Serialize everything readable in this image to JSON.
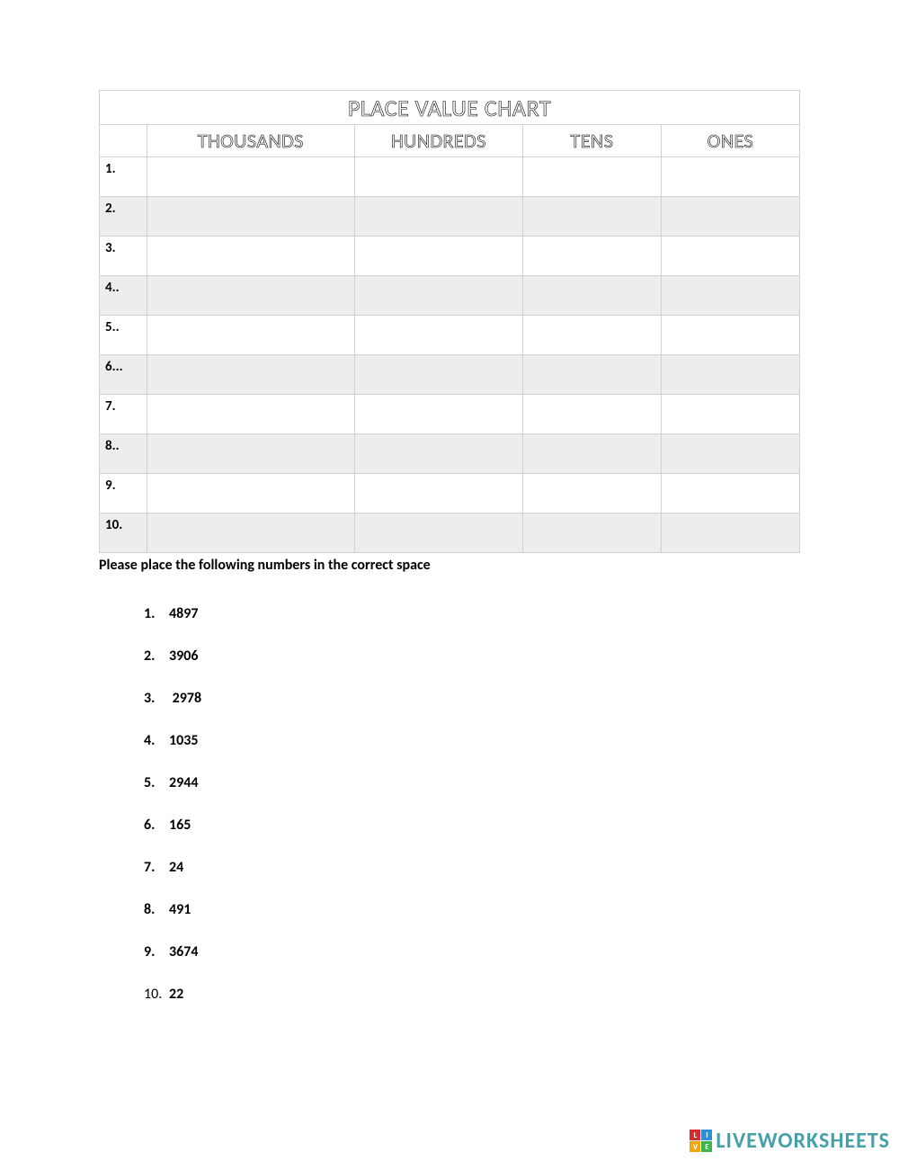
{
  "table": {
    "title": "PLACE VALUE CHART",
    "columns": [
      "THOUSANDS",
      "HUNDREDS",
      "TENS",
      "ONES"
    ],
    "rows": [
      {
        "label": "1.",
        "shaded": false
      },
      {
        "label": "2.",
        "shaded": true
      },
      {
        "label": "3.",
        "shaded": false
      },
      {
        "label": "4..",
        "shaded": true
      },
      {
        "label": "5..",
        "shaded": false
      },
      {
        "label": "6...",
        "shaded": true
      },
      {
        "label": "7.",
        "shaded": false
      },
      {
        "label": "8..",
        "shaded": true
      },
      {
        "label": "9.",
        "shaded": false
      },
      {
        "label": "10.",
        "shaded": true
      }
    ]
  },
  "instruction": "Please place the following numbers in the correct space",
  "numbers": [
    {
      "index": "1.",
      "value": "4897"
    },
    {
      "index": "2.",
      "value": "3906"
    },
    {
      "index": "3.",
      "value": " 2978"
    },
    {
      "index": "4.",
      "value": "1035"
    },
    {
      "index": "5.",
      "value": "2944"
    },
    {
      "index": "6.",
      "value": "165"
    },
    {
      "index": "7.",
      "value": "24"
    },
    {
      "index": "8.",
      "value": "491"
    },
    {
      "index": "9.",
      "value": "3674"
    },
    {
      "index": "10.",
      "value": "22",
      "last": true
    }
  ],
  "watermark": {
    "squares": [
      {
        "letter": "L",
        "bg": "#d92b2b"
      },
      {
        "letter": "I",
        "bg": "#2b8fd9"
      },
      {
        "letter": "V",
        "bg": "#f2a60d"
      },
      {
        "letter": "E",
        "bg": "#3cb44b"
      }
    ],
    "text": "LIVEWORKSHEETS",
    "text_color": "#46a0a8"
  }
}
